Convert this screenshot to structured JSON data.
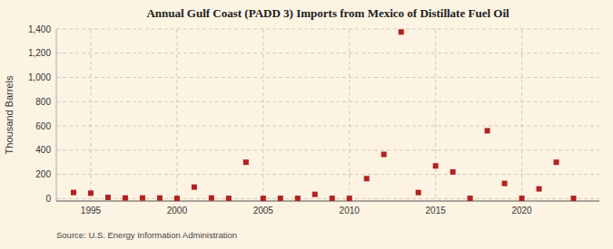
{
  "chart_data": {
    "type": "scatter",
    "title": "Annual Gulf Coast (PADD 3) Imports from Mexico of Distillate Fuel Oil",
    "ylabel": "Thousand Barrels",
    "source": "Source: U.S. Energy Information Administration",
    "x": [
      1994,
      1995,
      1996,
      1997,
      1998,
      1999,
      2000,
      2001,
      2002,
      2003,
      2004,
      2005,
      2006,
      2007,
      2008,
      2009,
      2010,
      2011,
      2012,
      2013,
      2014,
      2015,
      2016,
      2017,
      2018,
      2019,
      2020,
      2021,
      2022,
      2023
    ],
    "values": [
      50,
      45,
      10,
      5,
      5,
      5,
      2,
      95,
      5,
      2,
      300,
      2,
      2,
      2,
      35,
      2,
      2,
      165,
      365,
      1375,
      50,
      270,
      220,
      2,
      560,
      125,
      2,
      80,
      300,
      2
    ],
    "color": "#b22222",
    "marker": "square",
    "xlim": [
      1993.0,
      2024.5
    ],
    "ylim": [
      -20,
      1400
    ],
    "xticks": [
      1995,
      2000,
      2005,
      2010,
      2015,
      2020
    ],
    "yticks": [
      0,
      200,
      400,
      600,
      800,
      {
        "value": 1000,
        "label": "1,000"
      },
      {
        "value": 1200,
        "label": "1,200"
      },
      {
        "value": 1400,
        "label": "1,400"
      }
    ],
    "grid": true
  }
}
